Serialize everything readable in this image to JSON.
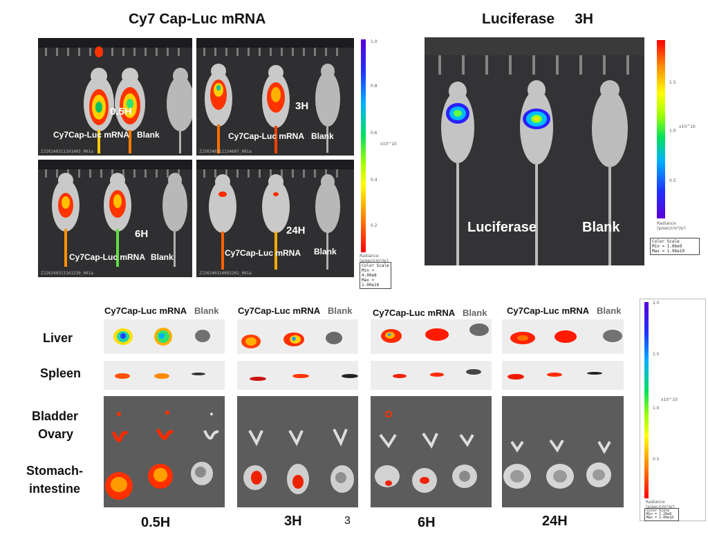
{
  "top_left": {
    "title": "Cy7 Cap-Luc mRNA",
    "panels": [
      {
        "time": "0.5H",
        "label_a": "Cy7Cap-Luc mRNA",
        "label_b": "Blank",
        "id": "ZJ20240311101403_001a"
      },
      {
        "time": "3H",
        "label_a": "Cy7Cap-Luc mRNA",
        "label_b": "Blank",
        "id": "ZJ20240311134607_001a"
      },
      {
        "time": "6H",
        "label_a": "Cy7Cap-Luc mRNA",
        "label_b": "Blank",
        "id": "ZJ20240311161320_001a"
      },
      {
        "time": "24H",
        "label_a": "Cy7Cap-Luc mRNA",
        "label_b": "Blank",
        "id": "ZJ20240314092201_001a"
      }
    ],
    "scale": {
      "ticks": [
        "1.0",
        "0.8",
        "0.6",
        "0.4",
        "0.2"
      ],
      "exponent": "x10^10",
      "unit": "Radiance (p/sec/cm²/sr)",
      "box": [
        "Color Scale",
        "Min = 4.00e8",
        "Max = 1.00e10"
      ]
    }
  },
  "top_right": {
    "title": "Luciferase     3H",
    "label_a": "Luciferase",
    "label_b": "Blank",
    "scale": {
      "ticks": [
        "1.5",
        "1.0",
        "0.5"
      ],
      "exponent": "x10^10",
      "unit": "Radiance (p/sec/cm²/sr)",
      "box": [
        "Color Scale",
        "Min = 1.06e9",
        "Max = 1.96e10"
      ]
    }
  },
  "bottom": {
    "col_a": "Cy7Cap-Luc mRNA",
    "col_b": "Blank",
    "rows": [
      "Liver",
      "Spleen",
      "Bladder",
      "Ovary",
      "Stomach-",
      "intestine"
    ],
    "times": [
      "0.5H",
      "3H",
      "6H",
      "24H"
    ],
    "stray": "3",
    "scale": {
      "ticks": [
        "2.0",
        "1.5",
        "1.0",
        "0.5"
      ],
      "exponent": "x10^10",
      "unit": "Radiance (p/sec/cm²/sr)",
      "box": [
        "Color Scale",
        "Min = 1.20e8",
        "Max = 2.00e10"
      ]
    }
  }
}
